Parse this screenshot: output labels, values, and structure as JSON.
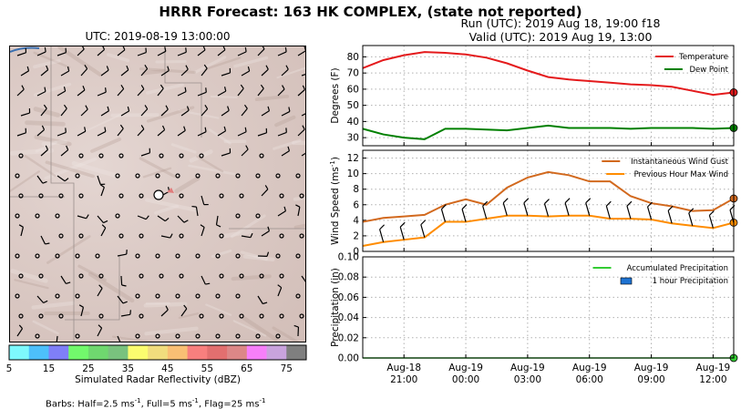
{
  "header": {
    "title": "HRRR Forecast: 163 HK COMPLEX, (state not reported)",
    "map_utc": "UTC: 2019-08-19 13:00:00",
    "run": "Run (UTC): 2019 Aug 18, 19:00 f18",
    "valid": "Valid (UTC): 2019 Aug 19, 13:00"
  },
  "colorbar": {
    "label": "Simulated Radar Reflectivity (dBZ)",
    "ticks": [
      "5",
      "15",
      "25",
      "35",
      "45",
      "55",
      "65",
      "75"
    ],
    "colors": [
      "#7ef9fd",
      "#4dc0fb",
      "#7f7ff8",
      "#72f96c",
      "#6fd86f",
      "#79c27e",
      "#fbfc6f",
      "#f1dd7d",
      "#f9bf74",
      "#f87f7e",
      "#e26f6f",
      "#dc8787",
      "#f77ff9",
      "#c9a3dd",
      "#7f7f7f"
    ]
  },
  "barbs_note": {
    "prefix": "Barbs: Half=2.5 ms",
    "exp": "-1",
    "mid1": ", Full=5 ms",
    "mid2": ", Flag=25 ms"
  },
  "chart_data": [
    {
      "type": "line",
      "ylabel": "Degrees (F)",
      "ylim": [
        25,
        87
      ],
      "yticks": [
        30,
        40,
        50,
        60,
        70,
        80
      ],
      "grid": true,
      "legend_position": "top-right",
      "x_hours": [
        0,
        1,
        2,
        3,
        4,
        5,
        6,
        7,
        8,
        9,
        10,
        11,
        12,
        13,
        14,
        15,
        16,
        17,
        18
      ],
      "series": [
        {
          "name": "Temperature",
          "color": "#e41a1c",
          "values": [
            73,
            78,
            81,
            83,
            82.5,
            81.5,
            79.5,
            76,
            71.5,
            67.5,
            66,
            65,
            64,
            63,
            62.5,
            61.5,
            59,
            56.5,
            58
          ]
        },
        {
          "name": "Dew Point",
          "color": "#008000",
          "values": [
            35.5,
            32,
            30,
            29,
            35.5,
            35.5,
            35,
            34.5,
            36,
            37.5,
            36,
            36,
            36,
            35.5,
            36,
            36,
            36,
            35.5,
            36
          ]
        }
      ]
    },
    {
      "type": "line",
      "ylabel": "Wind Speed (ms",
      "ylabel_exp": "-1",
      "ylim": [
        0,
        13
      ],
      "yticks": [
        0,
        2,
        4,
        6,
        8,
        10,
        12
      ],
      "grid": true,
      "legend_position": "top-right",
      "x_hours": [
        0,
        1,
        2,
        3,
        4,
        5,
        6,
        7,
        8,
        9,
        10,
        11,
        12,
        13,
        14,
        15,
        16,
        17,
        18
      ],
      "series": [
        {
          "name": "Instantaneous Wind Gust",
          "color": "#d2691e",
          "values": [
            3.8,
            4.3,
            4.5,
            4.7,
            6,
            6.7,
            6,
            8.2,
            9.5,
            10.2,
            9.8,
            9,
            9,
            7.1,
            6.2,
            5.8,
            5.2,
            5.3,
            6.8
          ]
        },
        {
          "name": "Previous Hour Max Wind",
          "color": "#ff8c00",
          "values": [
            0.7,
            1.2,
            1.5,
            1.8,
            3.8,
            3.8,
            4.2,
            4.6,
            4.6,
            4.5,
            4.6,
            4.6,
            4.2,
            4.2,
            4.1,
            3.6,
            3.3,
            3.0,
            3.7
          ]
        }
      ]
    },
    {
      "type": "line",
      "ylabel": "Precipitation (in)",
      "ylim": [
        0,
        0.1
      ],
      "yticks": [
        "0.00",
        "0.02",
        "0.04",
        "0.06",
        "0.08",
        "0.10"
      ],
      "grid": true,
      "legend_position": "top-right",
      "x_hours": [
        0,
        1,
        2,
        3,
        4,
        5,
        6,
        7,
        8,
        9,
        10,
        11,
        12,
        13,
        14,
        15,
        16,
        17,
        18
      ],
      "series": [
        {
          "name": "Accumulated Precipitation",
          "color": "#33cc33",
          "values": [
            0,
            0,
            0,
            0,
            0,
            0,
            0,
            0,
            0,
            0,
            0,
            0,
            0,
            0,
            0,
            0,
            0,
            0,
            0
          ]
        },
        {
          "name": "1 hour Precipitation",
          "color": "#1e73d2",
          "values": [
            0,
            0,
            0,
            0,
            0,
            0,
            0,
            0,
            0,
            0,
            0,
            0,
            0,
            0,
            0,
            0,
            0,
            0,
            0
          ]
        }
      ],
      "xticks": [
        {
          "hour": 2,
          "line1": "Aug-18",
          "line2": "21:00"
        },
        {
          "hour": 5,
          "line1": "Aug-19",
          "line2": "00:00"
        },
        {
          "hour": 8,
          "line1": "Aug-19",
          "line2": "03:00"
        },
        {
          "hour": 11,
          "line1": "Aug-19",
          "line2": "06:00"
        },
        {
          "hour": 14,
          "line1": "Aug-19",
          "line2": "09:00"
        },
        {
          "hour": 17,
          "line1": "Aug-19",
          "line2": "12:00"
        }
      ]
    }
  ]
}
